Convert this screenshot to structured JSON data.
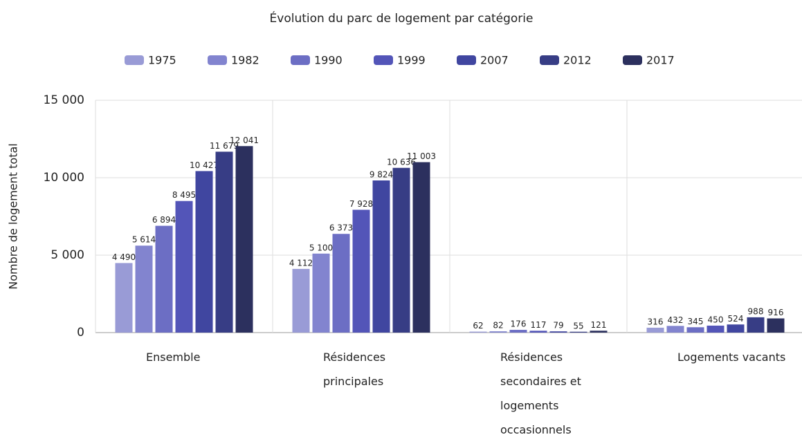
{
  "chart_data": {
    "type": "bar",
    "title": "Évolution du parc de logement par catégorie",
    "y_label": "Nombre de logement total",
    "categories": [
      "Ensemble",
      "Résidences principales",
      "Résidences secondaires et logements occasionnels",
      "Logements vacants"
    ],
    "series": [
      {
        "name": "1975",
        "color": "#999bd6",
        "values": [
          4490,
          4112,
          62,
          316
        ],
        "value_labels": [
          "4 490",
          "4 112",
          "62",
          "316"
        ]
      },
      {
        "name": "1982",
        "color": "#8284cf",
        "values": [
          5614,
          5100,
          82,
          432
        ],
        "value_labels": [
          "5 614",
          "5 100",
          "82",
          "432"
        ]
      },
      {
        "name": "1990",
        "color": "#6c6ec4",
        "values": [
          6894,
          6373,
          176,
          345
        ],
        "value_labels": [
          "6 894",
          "6 373",
          "176",
          "345"
        ]
      },
      {
        "name": "1999",
        "color": "#5355b8",
        "values": [
          8495,
          7928,
          117,
          450
        ],
        "value_labels": [
          "8 495",
          "7 928",
          "117",
          "450"
        ]
      },
      {
        "name": "2007",
        "color": "#4046a0",
        "values": [
          10427,
          9824,
          79,
          524
        ],
        "value_labels": [
          "10 427",
          "9 824",
          "79",
          "524"
        ]
      },
      {
        "name": "2012",
        "color": "#373d85",
        "values": [
          11679,
          10636,
          55,
          988
        ],
        "value_labels": [
          "11 679",
          "10 636",
          "55",
          "988"
        ]
      },
      {
        "name": "2017",
        "color": "#2c305e",
        "values": [
          12041,
          11003,
          121,
          916
        ],
        "value_labels": [
          "12 041",
          "11 003",
          "121",
          "916"
        ]
      }
    ],
    "ylim": [
      0,
      15000
    ],
    "yticks": [
      0,
      {
        "value": 5000,
        "label": "5 000"
      },
      {
        "value": 10000,
        "label": "10 000"
      },
      {
        "value": 15000,
        "label": "15 000"
      }
    ],
    "grid": true
  }
}
